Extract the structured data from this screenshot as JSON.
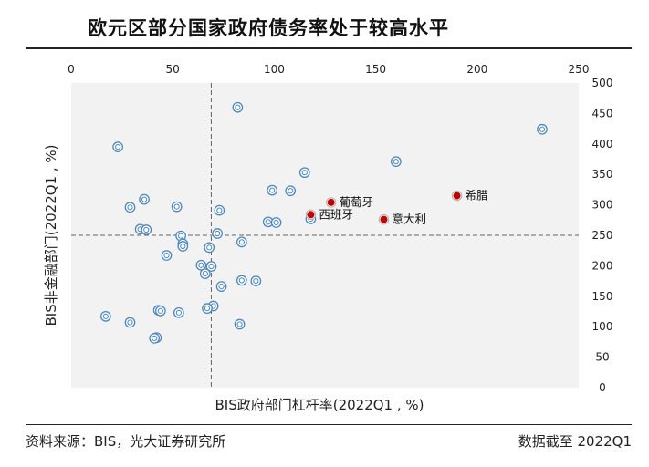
{
  "title": "欧元区部分国家政府债务率处于较高水平",
  "source": "资料来源：BIS，光大证券研究所",
  "date_note": "数据截至 2022Q1",
  "colors": {
    "plot_bg": "#f2f2f2",
    "marker_ring": "#4a86c5",
    "highlight": "#c00000"
  },
  "chart_data": {
    "type": "scatter",
    "xlabel": "BIS政府部门杠杆率(2022Q1 , %)",
    "ylabel": "BIS非金融部门(2022Q1 , %)",
    "xlim": [
      0,
      250
    ],
    "ylim": [
      0,
      500
    ],
    "xticks": [
      0,
      50,
      100,
      150,
      200,
      250
    ],
    "yticks": [
      0,
      50,
      100,
      150,
      200,
      250,
      300,
      350,
      400,
      450,
      500
    ],
    "reference_lines": {
      "x": 69,
      "y": 250
    },
    "grid": false,
    "series": [
      {
        "points": [
          [
            82,
            460
          ],
          [
            232,
            424
          ],
          [
            23,
            395
          ],
          [
            160,
            371
          ],
          [
            115,
            353
          ],
          [
            99,
            324
          ],
          [
            108,
            323
          ],
          [
            36,
            309
          ],
          [
            52,
            297
          ],
          [
            29,
            296
          ],
          [
            73,
            291
          ],
          [
            97,
            272
          ],
          [
            101,
            271
          ],
          [
            34,
            260
          ],
          [
            37,
            259
          ],
          [
            72,
            253
          ],
          [
            54,
            249
          ],
          [
            55,
            236
          ],
          [
            55,
            232
          ],
          [
            84,
            239
          ],
          [
            68,
            230
          ],
          [
            47,
            217
          ],
          [
            64,
            201
          ],
          [
            69,
            199
          ],
          [
            66,
            187
          ],
          [
            84,
            176
          ],
          [
            91,
            175
          ],
          [
            74,
            166
          ],
          [
            70,
            134
          ],
          [
            67,
            130
          ],
          [
            43,
            127
          ],
          [
            44,
            126
          ],
          [
            53,
            123
          ],
          [
            17,
            117
          ],
          [
            29,
            107
          ],
          [
            83,
            104
          ],
          [
            42,
            82
          ],
          [
            41,
            81
          ],
          [
            118,
            277
          ]
        ]
      },
      {
        "points": [
          {
            "x": 128,
            "y": 304,
            "label": "葡萄牙"
          },
          {
            "x": 118,
            "y": 284,
            "label": "西班牙"
          },
          {
            "x": 154,
            "y": 276,
            "label": "意大利"
          },
          {
            "x": 190,
            "y": 315,
            "label": "希腊"
          }
        ]
      }
    ]
  }
}
